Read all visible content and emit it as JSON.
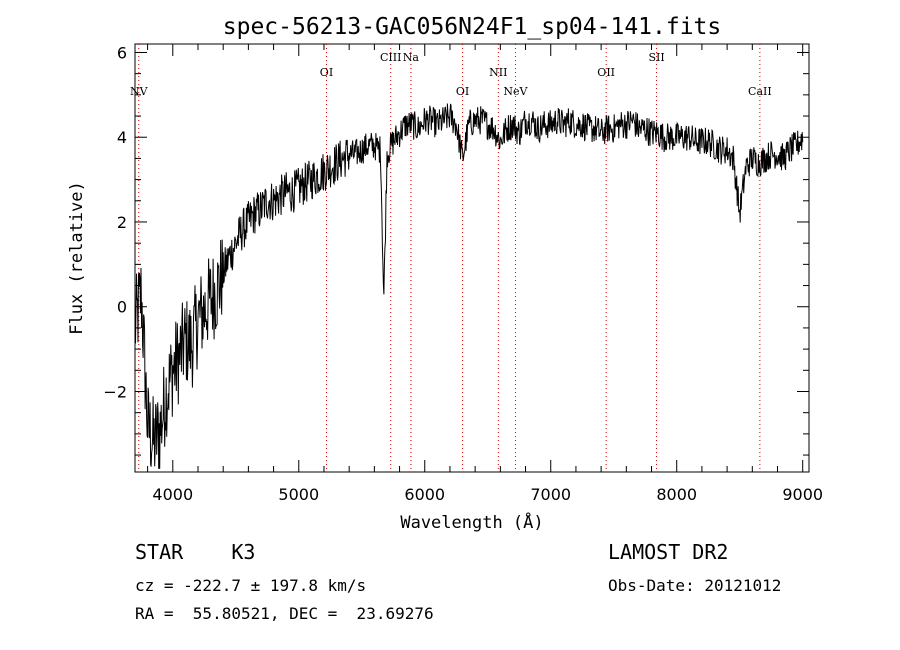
{
  "chart_data": {
    "type": "line",
    "title": "spec-56213-GAC056N24F1_sp04-141.fits",
    "xlabel": "Wavelength (Å)",
    "ylabel": "Flux (relative)",
    "xlim": [
      3700,
      9050
    ],
    "ylim": [
      -3.9,
      6.2
    ],
    "x_ticks": [
      4000,
      5000,
      6000,
      7000,
      8000,
      9000
    ],
    "y_ticks": [
      -2,
      0,
      2,
      4,
      6
    ],
    "grid": false,
    "series": [
      {
        "color": "#000000",
        "x": [
          3700,
          3750,
          3800,
          3850,
          3900,
          3950,
          4000,
          4050,
          4100,
          4150,
          4200,
          4250,
          4300,
          4350,
          4400,
          4450,
          4500,
          4550,
          4600,
          4650,
          4700,
          4750,
          4800,
          4850,
          4900,
          4950,
          5000,
          5050,
          5100,
          5150,
          5200,
          5250,
          5300,
          5350,
          5400,
          5450,
          5500,
          5550,
          5600,
          5650,
          5675,
          5700,
          5750,
          5800,
          5850,
          5900,
          5950,
          6000,
          6050,
          6100,
          6150,
          6200,
          6250,
          6300,
          6350,
          6400,
          6450,
          6500,
          6550,
          6600,
          6650,
          6700,
          6750,
          6800,
          6850,
          6900,
          6950,
          7000,
          7050,
          7100,
          7150,
          7200,
          7250,
          7300,
          7350,
          7400,
          7450,
          7500,
          7550,
          7600,
          7650,
          7700,
          7750,
          7800,
          7850,
          7900,
          7950,
          8000,
          8050,
          8100,
          8150,
          8200,
          8250,
          8300,
          8350,
          8400,
          8450,
          8500,
          8550,
          8600,
          8650,
          8700,
          8750,
          8800,
          8850,
          8900,
          8950,
          9000
        ],
        "y": [
          -0.5,
          0.3,
          -2.8,
          -3.2,
          -2.9,
          -2.0,
          -1.5,
          -1.2,
          -0.8,
          -0.9,
          -0.3,
          -0.1,
          0.2,
          0.4,
          0.8,
          1.2,
          1.5,
          1.8,
          2.0,
          2.2,
          2.3,
          2.5,
          2.5,
          2.6,
          2.7,
          2.7,
          2.8,
          2.9,
          3.0,
          3.1,
          3.2,
          3.3,
          3.4,
          3.5,
          3.6,
          3.6,
          3.7,
          3.8,
          3.8,
          3.7,
          0.1,
          3.6,
          3.9,
          4.1,
          4.3,
          4.3,
          4.2,
          4.4,
          4.4,
          4.3,
          4.4,
          4.5,
          4.3,
          3.5,
          4.3,
          4.4,
          4.4,
          4.3,
          4.2,
          3.9,
          4.2,
          4.3,
          4.1,
          4.4,
          4.4,
          4.2,
          4.3,
          4.3,
          4.4,
          4.3,
          4.4,
          4.3,
          4.3,
          4.2,
          4.2,
          4.1,
          4.2,
          4.2,
          4.3,
          4.3,
          4.4,
          4.2,
          4.2,
          4.1,
          4.1,
          4.0,
          4.0,
          4.0,
          4.0,
          4.0,
          3.9,
          3.9,
          3.9,
          3.8,
          3.7,
          3.7,
          3.5,
          2.2,
          3.3,
          3.5,
          3.4,
          3.5,
          3.6,
          3.6,
          3.5,
          3.7,
          3.8,
          4.0
        ]
      }
    ],
    "lines": [
      {
        "label": "NV",
        "x": 3730,
        "label_y": 5.0
      },
      {
        "label": "OI",
        "x": 5220,
        "label_y": 5.45
      },
      {
        "label": "CIII",
        "x": 5730,
        "label_y": 5.8
      },
      {
        "label": "Na",
        "x": 5890,
        "label_y": 5.8
      },
      {
        "label": "OI",
        "x": 6300,
        "label_y": 5.0
      },
      {
        "label": "NII",
        "x": 6584,
        "label_y": 5.45
      },
      {
        "label": "NeV",
        "x": 6720,
        "label_y": 5.0
      },
      {
        "label": "OII",
        "x": 7440,
        "label_y": 5.45
      },
      {
        "label": "SII",
        "x": 7840,
        "label_y": 5.8
      },
      {
        "label": "CaII",
        "x": 8660,
        "label_y": 5.0
      }
    ]
  },
  "info": {
    "object": "STAR    K3",
    "cz": "cz = -222.7 ± 197.8 km/s",
    "coords": "RA =  55.80521, DEC =  23.69276",
    "survey": "LAMOST DR2",
    "obs_date": "Obs-Date: 20121012"
  }
}
